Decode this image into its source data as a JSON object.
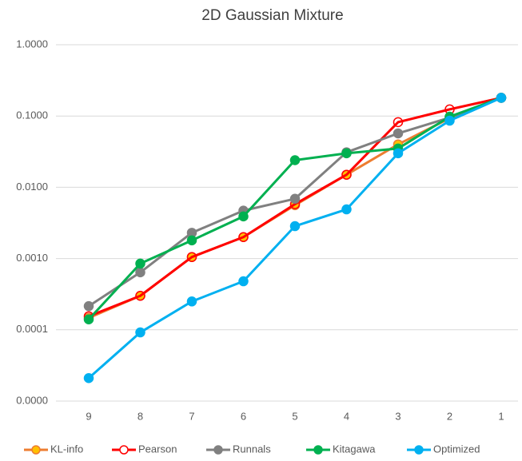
{
  "chart_data": {
    "type": "line",
    "title": "2D Gaussian Mixture",
    "categories": [
      "9",
      "8",
      "7",
      "6",
      "5",
      "4",
      "3",
      "2",
      "1"
    ],
    "log_y": true,
    "grid": true,
    "legend": "bottom",
    "ylim": [
      1e-05,
      1
    ],
    "yticks": [
      {
        "value": 1e-05,
        "label": "0.0000"
      },
      {
        "value": 0.0001,
        "label": "0.0001"
      },
      {
        "value": 0.001,
        "label": "0.0010"
      },
      {
        "value": 0.01,
        "label": "0.0100"
      },
      {
        "value": 0.1,
        "label": "0.1000"
      },
      {
        "value": 1,
        "label": "1.0000"
      }
    ],
    "series": [
      {
        "name": "KL-info",
        "color": "#ed7d31",
        "marker_fill": "#ffc000",
        "marker_edge": "#ed7d31",
        "values": [
          0.000147,
          0.0003,
          0.00105,
          0.002,
          0.0056,
          0.015,
          0.04,
          0.093,
          0.18
        ]
      },
      {
        "name": "Pearson",
        "color": "#ff0000",
        "marker_fill": "none",
        "marker_edge": "#ff0000",
        "values": [
          0.000155,
          0.0003,
          0.00105,
          0.002,
          0.0058,
          0.015,
          0.082,
          0.124,
          0.18
        ]
      },
      {
        "name": "Runnals",
        "color": "#808080",
        "marker_fill": "#808080",
        "marker_edge": "#808080",
        "values": [
          0.000215,
          0.00064,
          0.0023,
          0.0047,
          0.0069,
          0.031,
          0.057,
          0.095,
          0.18
        ]
      },
      {
        "name": "Kitagawa",
        "color": "#00b050",
        "marker_fill": "#00b050",
        "marker_edge": "#00b050",
        "values": [
          0.00014,
          0.00085,
          0.0018,
          0.0039,
          0.024,
          0.03,
          0.035,
          0.098,
          0.18
        ]
      },
      {
        "name": "Optimized",
        "color": "#00b0f0",
        "marker_fill": "#00b0f0",
        "marker_edge": "#00b0f0",
        "values": [
          2.1e-05,
          9.2e-05,
          0.00025,
          0.00048,
          0.00285,
          0.0049,
          0.03,
          0.086,
          0.18
        ]
      }
    ]
  }
}
